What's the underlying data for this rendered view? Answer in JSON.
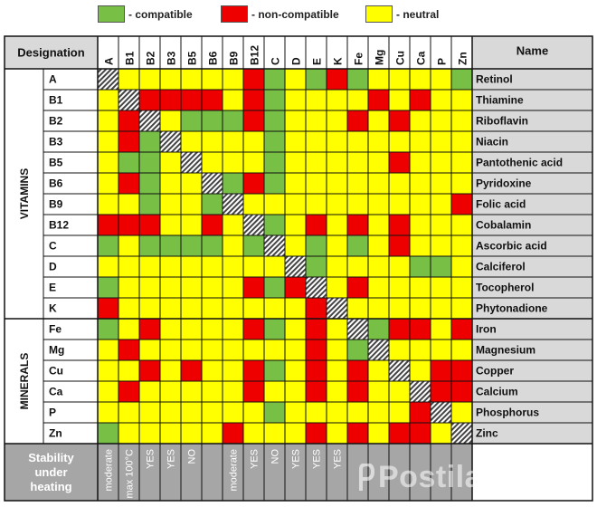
{
  "legend": [
    {
      "label": "- compatible",
      "color": "#78bf46"
    },
    {
      "label": "- non-compatible",
      "color": "#ee0000"
    },
    {
      "label": "- neutral",
      "color": "#ffff00"
    }
  ],
  "headers": {
    "designation": "Designation",
    "name": "Name",
    "stability": "Stability under heating"
  },
  "group_labels": {
    "vitamins": "VITAMINS",
    "minerals": "MINERALS"
  },
  "columns": [
    "A",
    "B1",
    "B2",
    "B3",
    "B5",
    "B6",
    "B9",
    "B12",
    "C",
    "D",
    "E",
    "K",
    "Fe",
    "Mg",
    "Cu",
    "Ca",
    "P",
    "Zn"
  ],
  "rows": [
    {
      "code": "A",
      "name": "Retinol"
    },
    {
      "code": "B1",
      "name": "Thiamine"
    },
    {
      "code": "B2",
      "name": "Riboflavin"
    },
    {
      "code": "B3",
      "name": "Niacin"
    },
    {
      "code": "B5",
      "name": "Pantothenic acid"
    },
    {
      "code": "B6",
      "name": "Pyridoxine"
    },
    {
      "code": "B9",
      "name": "Folic acid"
    },
    {
      "code": "B12",
      "name": "Cobalamin"
    },
    {
      "code": "C",
      "name": "Ascorbic acid"
    },
    {
      "code": "D",
      "name": "Calciferol"
    },
    {
      "code": "E",
      "name": "Tocopherol"
    },
    {
      "code": "K",
      "name": "Phytonadione"
    },
    {
      "code": "Fe",
      "name": "Iron"
    },
    {
      "code": "Mg",
      "name": "Magnesium"
    },
    {
      "code": "Cu",
      "name": "Copper"
    },
    {
      "code": "Ca",
      "name": "Calcium"
    },
    {
      "code": "P",
      "name": "Phosphorus"
    },
    {
      "code": "Zn",
      "name": "Zinc"
    }
  ],
  "matrix": [
    "XYYYYYYRGYGRGYYYYG",
    "YXRRRRYRGYYYYRYRYY",
    "YRXYGGGRGYYYRYRYYY",
    "YRGXYYYYGYYYYYYYYY",
    "YGGYXYYYGYYYYYRYYY",
    "YRGYYXGRGYYYYYYYYY",
    "YYGYYGXYYYYYYYYYYR",
    "RRRYYRYXGYRYRYRYYY",
    "GYGGGGYGXYGYGYRYYY",
    "YYYYYYYYYXGYYYYGGY",
    "GYYYYYYRGRXYRYYYYY",
    "RYYYYYYYYYRXYYYYYY",
    "GYRYYYYRGYRYXGRRYR",
    "YRYYYYYYYYRYGXYYYY",
    "YYRYRYYRGYRYRYXYRR",
    "YRYYYYYRYYRYRYYXRR",
    "YYYYYYYYGYYYYYYRXY",
    "GYYYYYRYYYRYRYRRYX"
  ],
  "stability": [
    "moderate",
    "max 100°C",
    "YES",
    "YES",
    "NO",
    "",
    "moderate",
    "YES",
    "NO",
    "YES",
    "YES",
    "YES",
    "",
    "",
    "",
    "",
    "",
    ""
  ],
  "watermark": "Postila.ru"
}
